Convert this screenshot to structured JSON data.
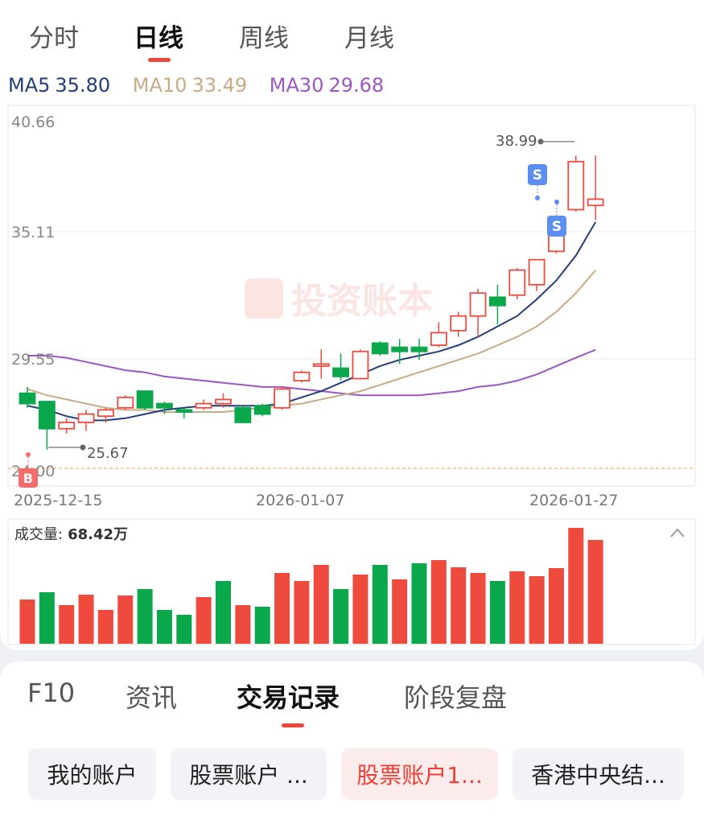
{
  "tabs": [
    {
      "label": "分时"
    },
    {
      "label": "日线"
    },
    {
      "label": "周线"
    },
    {
      "label": "月线"
    }
  ],
  "active_tab": "日线",
  "ma": {
    "ma5": {
      "label": "MA5",
      "value": "35.80",
      "color": "#233e7a"
    },
    "ma10": {
      "label": "MA10",
      "value": "33.49",
      "color": "#c9ab84"
    },
    "ma30": {
      "label": "MA30",
      "value": "29.68",
      "color": "#9b57c1"
    }
  },
  "watermark": "投资账本",
  "price_axis": {
    "top": "40.66",
    "mid": "35.11",
    "low": "29.55",
    "bottom": "24.00"
  },
  "date_labels": [
    "2025-12-15",
    "2026-01-07",
    "2026-01-27"
  ],
  "annotations": {
    "high": "38.99",
    "low": "25.67",
    "buy_marker": "B",
    "sell_marker": "S"
  },
  "volume": {
    "label": "成交量:",
    "value": "68.42万"
  },
  "colors": {
    "up": "#ee4a3e",
    "down": "#0aa84b",
    "ma5": "#233e7a",
    "ma10": "#c9ab84",
    "ma30": "#9b57c1",
    "accent": "#f0453a"
  },
  "chart_data": {
    "type": "candlestick",
    "ylim": [
      24.0,
      40.66
    ],
    "candles": [
      {
        "o": 27.6,
        "h": 27.9,
        "l": 26.9,
        "c": 27.1
      },
      {
        "o": 27.2,
        "h": 27.2,
        "l": 24.9,
        "c": 25.9
      },
      {
        "o": 25.9,
        "h": 26.4,
        "l": 25.67,
        "c": 26.2
      },
      {
        "o": 26.2,
        "h": 26.8,
        "l": 25.8,
        "c": 26.6
      },
      {
        "o": 26.5,
        "h": 26.9,
        "l": 26.2,
        "c": 26.8
      },
      {
        "o": 26.9,
        "h": 27.5,
        "l": 26.8,
        "c": 27.4
      },
      {
        "o": 27.7,
        "h": 27.7,
        "l": 26.8,
        "c": 26.9
      },
      {
        "o": 27.1,
        "h": 27.2,
        "l": 26.6,
        "c": 26.9
      },
      {
        "o": 26.8,
        "h": 26.9,
        "l": 26.4,
        "c": 26.7
      },
      {
        "o": 26.9,
        "h": 27.3,
        "l": 26.8,
        "c": 27.1
      },
      {
        "o": 27.1,
        "h": 27.6,
        "l": 26.9,
        "c": 27.3
      },
      {
        "o": 26.9,
        "h": 27.0,
        "l": 26.2,
        "c": 26.2
      },
      {
        "o": 27.0,
        "h": 27.1,
        "l": 26.5,
        "c": 26.6
      },
      {
        "o": 26.9,
        "h": 27.9,
        "l": 26.8,
        "c": 27.8
      },
      {
        "o": 28.2,
        "h": 28.7,
        "l": 28.1,
        "c": 28.6
      },
      {
        "o": 28.9,
        "h": 29.7,
        "l": 28.3,
        "c": 29.0
      },
      {
        "o": 28.8,
        "h": 29.5,
        "l": 28.2,
        "c": 28.4
      },
      {
        "o": 28.3,
        "h": 29.7,
        "l": 28.3,
        "c": 29.6
      },
      {
        "o": 30.0,
        "h": 30.1,
        "l": 29.4,
        "c": 29.5
      },
      {
        "o": 29.8,
        "h": 30.2,
        "l": 29.0,
        "c": 29.6
      },
      {
        "o": 29.8,
        "h": 30.2,
        "l": 29.2,
        "c": 29.6
      },
      {
        "o": 29.9,
        "h": 31.0,
        "l": 29.8,
        "c": 30.5
      },
      {
        "o": 30.6,
        "h": 31.5,
        "l": 30.3,
        "c": 31.3
      },
      {
        "o": 31.3,
        "h": 32.6,
        "l": 30.3,
        "c": 32.4
      },
      {
        "o": 32.2,
        "h": 32.8,
        "l": 30.9,
        "c": 31.8
      },
      {
        "o": 32.3,
        "h": 33.6,
        "l": 32.1,
        "c": 33.5
      },
      {
        "o": 32.8,
        "h": 34.0,
        "l": 32.5,
        "c": 34.0
      },
      {
        "o": 34.4,
        "h": 36.1,
        "l": 34.3,
        "c": 35.2
      },
      {
        "o": 36.4,
        "h": 38.99,
        "l": 36.3,
        "c": 38.7
      },
      {
        "o": 36.6,
        "h": 38.99,
        "l": 35.9,
        "c": 36.9
      }
    ],
    "ma5": [
      27.0,
      26.8,
      26.5,
      26.3,
      26.3,
      26.4,
      26.6,
      26.8,
      26.9,
      27.0,
      27.0,
      27.0,
      27.0,
      27.1,
      27.4,
      27.7,
      28.1,
      28.5,
      28.9,
      29.2,
      29.4,
      29.6,
      29.9,
      30.3,
      30.8,
      31.3,
      32.1,
      33.0,
      34.2,
      35.8
    ],
    "ma10": [
      27.8,
      27.5,
      27.3,
      27.1,
      26.9,
      26.8,
      26.8,
      26.7,
      26.7,
      26.7,
      26.7,
      26.8,
      26.9,
      27.0,
      27.1,
      27.3,
      27.5,
      27.7,
      28.0,
      28.3,
      28.6,
      28.9,
      29.2,
      29.5,
      29.9,
      30.3,
      30.8,
      31.5,
      32.4,
      33.49
    ],
    "ma30": [
      29.4,
      29.4,
      29.3,
      29.1,
      28.9,
      28.7,
      28.6,
      28.4,
      28.3,
      28.2,
      28.1,
      28.0,
      27.9,
      27.9,
      27.8,
      27.7,
      27.6,
      27.5,
      27.5,
      27.5,
      27.5,
      27.6,
      27.7,
      27.9,
      28.0,
      28.2,
      28.5,
      28.9,
      29.3,
      29.68
    ],
    "volume_values": [
      55,
      64,
      48,
      61,
      42,
      60,
      68,
      42,
      36,
      58,
      78,
      48,
      46,
      88,
      78,
      98,
      68,
      86,
      98,
      80,
      100,
      104,
      95,
      88,
      78,
      90,
      84,
      94,
      144,
      129
    ],
    "volume_up": [
      true,
      false,
      true,
      true,
      true,
      true,
      false,
      false,
      false,
      true,
      false,
      true,
      false,
      true,
      true,
      true,
      false,
      true,
      false,
      true,
      false,
      true,
      true,
      true,
      false,
      true,
      true,
      true,
      true,
      true
    ]
  },
  "bottom_tabs": [
    {
      "label": "F10"
    },
    {
      "label": "资讯"
    },
    {
      "label": "交易记录"
    },
    {
      "label": "阶段复盘"
    }
  ],
  "accounts": [
    {
      "label": "我的账户"
    },
    {
      "label": "股票账户 ..."
    },
    {
      "label": "股票账户1..."
    },
    {
      "label": "香港中央结..."
    }
  ]
}
